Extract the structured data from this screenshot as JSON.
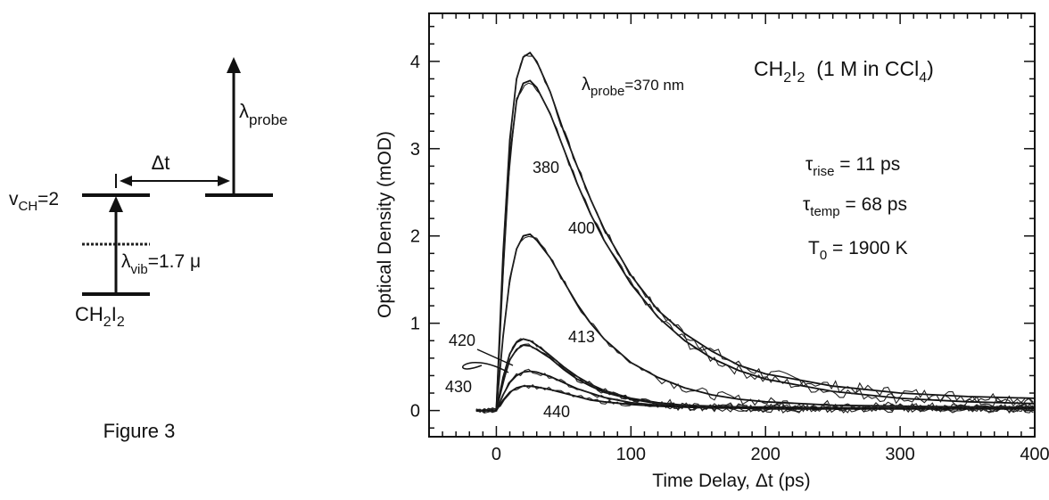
{
  "diagram": {
    "probe_label": "λ",
    "probe_sub": "probe",
    "delta_t_label": "Δt",
    "level_label": "v",
    "level_sub": "CH",
    "level_value": "=2",
    "vib_label": "λ",
    "vib_sub": "vib",
    "vib_value": "=1.7 μ",
    "molecule_a": "CH",
    "molecule_sub1": "2",
    "molecule_b": "I",
    "molecule_sub2": "2",
    "figure_caption": "Figure 3"
  },
  "chart_data": {
    "type": "line",
    "xlabel": "Time Delay, Δt (ps)",
    "ylabel": "Optical Density (mOD)",
    "xlim": [
      -50,
      400
    ],
    "ylim": [
      -0.3,
      4.55
    ],
    "xticks": [
      0,
      100,
      200,
      300,
      400
    ],
    "yticks": [
      0,
      1,
      2,
      3,
      4
    ],
    "grid": false,
    "annotations": {
      "title_a": "CH",
      "title_s1": "2",
      "title_b": "I",
      "title_s2": "2",
      "title_c": "  (1 M in CCl",
      "title_s3": "4",
      "title_d": ")",
      "rise_a": "τ",
      "rise_sub": "rise",
      "rise_val": " = 11 ps",
      "temp_a": "τ",
      "temp_sub": "temp",
      "temp_val": " = 68 ps",
      "t0_a": "T",
      "t0_sub": "0",
      "t0_val": " = 1900 K",
      "probe_a": "λ",
      "probe_sub": "probe",
      "probe_val": "=370 nm"
    },
    "series": [
      {
        "name": "370",
        "x": [
          -15,
          0,
          5,
          10,
          15,
          20,
          25,
          30,
          40,
          50,
          60,
          70,
          80,
          100,
          120,
          140,
          160,
          180,
          200,
          250,
          300,
          350,
          400
        ],
        "values": [
          0,
          0,
          1.8,
          3.1,
          3.8,
          4.05,
          4.1,
          4.0,
          3.65,
          3.2,
          2.8,
          2.42,
          2.08,
          1.55,
          1.15,
          0.88,
          0.68,
          0.52,
          0.42,
          0.28,
          0.2,
          0.16,
          0.14
        ]
      },
      {
        "name": "380",
        "x": [
          -15,
          0,
          5,
          10,
          15,
          20,
          25,
          30,
          40,
          50,
          60,
          70,
          80,
          100,
          120,
          140,
          160,
          180,
          200,
          250,
          300,
          350,
          400
        ],
        "values": [
          0,
          0,
          1.6,
          2.9,
          3.55,
          3.75,
          3.78,
          3.7,
          3.4,
          3.0,
          2.6,
          2.25,
          1.95,
          1.45,
          1.07,
          0.8,
          0.6,
          0.46,
          0.36,
          0.22,
          0.14,
          0.1,
          0.08
        ]
      },
      {
        "name": "400",
        "x": [
          -15,
          0,
          5,
          10,
          15,
          20,
          25,
          30,
          40,
          50,
          60,
          70,
          80,
          100,
          120,
          140,
          160,
          180,
          200,
          250,
          300,
          350,
          400
        ],
        "values": [
          0,
          0,
          0.85,
          1.5,
          1.85,
          2.0,
          2.02,
          1.95,
          1.75,
          1.48,
          1.22,
          1.0,
          0.82,
          0.55,
          0.38,
          0.26,
          0.18,
          0.13,
          0.1,
          0.06,
          0.05,
          0.04,
          0.04
        ]
      },
      {
        "name": "413",
        "x": [
          -15,
          0,
          5,
          10,
          15,
          20,
          25,
          30,
          40,
          50,
          60,
          70,
          80,
          100,
          120,
          140,
          160,
          180,
          200,
          250,
          300,
          350,
          400
        ],
        "values": [
          0,
          0,
          0.38,
          0.65,
          0.78,
          0.82,
          0.8,
          0.75,
          0.63,
          0.5,
          0.39,
          0.3,
          0.23,
          0.14,
          0.09,
          0.06,
          0.05,
          0.04,
          0.04,
          0.03,
          0.03,
          0.03,
          0.03
        ]
      },
      {
        "name": "420",
        "x": [
          -15,
          0,
          5,
          10,
          15,
          20,
          25,
          30,
          40,
          50,
          60,
          70,
          80,
          100,
          120,
          140,
          160,
          180,
          200,
          250,
          300,
          350,
          400
        ],
        "values": [
          0,
          0,
          0.33,
          0.58,
          0.7,
          0.75,
          0.74,
          0.7,
          0.6,
          0.47,
          0.36,
          0.28,
          0.21,
          0.13,
          0.08,
          0.05,
          0.04,
          0.03,
          0.03,
          0.03,
          0.03,
          0.03,
          0.03
        ]
      },
      {
        "name": "430",
        "x": [
          -15,
          0,
          5,
          10,
          15,
          20,
          25,
          30,
          40,
          50,
          60,
          70,
          80,
          100,
          120,
          140,
          160,
          180,
          200,
          250,
          300,
          350,
          400
        ],
        "values": [
          0,
          0,
          0.18,
          0.32,
          0.4,
          0.44,
          0.45,
          0.44,
          0.39,
          0.32,
          0.25,
          0.2,
          0.15,
          0.09,
          0.06,
          0.04,
          0.03,
          0.03,
          0.02,
          0.02,
          0.02,
          0.02,
          0.02
        ]
      },
      {
        "name": "440",
        "x": [
          -15,
          0,
          5,
          10,
          15,
          20,
          25,
          30,
          40,
          50,
          60,
          70,
          80,
          100,
          120,
          140,
          160,
          180,
          200,
          250,
          300,
          350,
          400
        ],
        "values": [
          0,
          0,
          0.12,
          0.21,
          0.26,
          0.28,
          0.28,
          0.27,
          0.24,
          0.2,
          0.16,
          0.12,
          0.1,
          0.07,
          0.05,
          0.04,
          0.03,
          0.03,
          0.02,
          0.02,
          0.02,
          0.02,
          0.02
        ]
      }
    ]
  }
}
